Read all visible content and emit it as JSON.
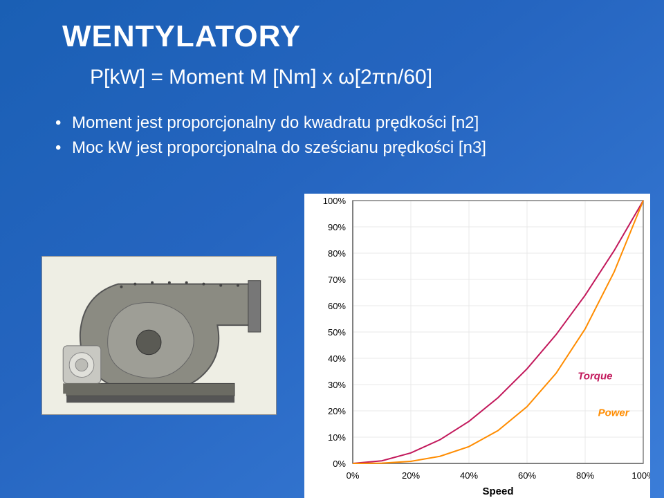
{
  "title": "WENTYLATORY",
  "formula": "P[kW] = Moment M [Nm] x ω[2πn/60]",
  "bullets": [
    "Moment jest proporcjonalny do kwadratu prędkości [n2]",
    "Moc kW jest proporcjonalna do sześcianu prędkości [n3]"
  ],
  "chart": {
    "type": "line",
    "x_axis": {
      "label": "Speed",
      "ticks": [
        "0%",
        "20%",
        "40%",
        "60%",
        "80%",
        "100%"
      ],
      "min": 0,
      "max": 100,
      "step": 20
    },
    "y_axis": {
      "ticks": [
        "0%",
        "10%",
        "20%",
        "30%",
        "40%",
        "50%",
        "60%",
        "70%",
        "80%",
        "90%",
        "100%"
      ],
      "min": 0,
      "max": 100,
      "step": 10
    },
    "grid_color": "#e8e8e8",
    "axis_color": "#808080",
    "background_color": "#ffffff",
    "tick_fontsize": 13,
    "label_fontsize": 15,
    "label_fontweight": "bold",
    "series": [
      {
        "name": "Torque",
        "label": "Torque",
        "color": "#c2185b",
        "label_font": "italic bold 15px Arial",
        "width": 2,
        "label_pos": {
          "x": 76,
          "y": 32
        },
        "points": [
          [
            0,
            0
          ],
          [
            10,
            1
          ],
          [
            20,
            4
          ],
          [
            30,
            9
          ],
          [
            40,
            16
          ],
          [
            50,
            25
          ],
          [
            60,
            36
          ],
          [
            70,
            49
          ],
          [
            80,
            64
          ],
          [
            90,
            81
          ],
          [
            100,
            100
          ]
        ]
      },
      {
        "name": "Power",
        "label": "Power",
        "color": "#ff8c00",
        "label_font": "italic bold 15px Arial",
        "width": 2,
        "label_pos": {
          "x": 83,
          "y": 18
        },
        "points": [
          [
            0,
            0
          ],
          [
            10,
            0.1
          ],
          [
            20,
            0.8
          ],
          [
            30,
            2.7
          ],
          [
            40,
            6.4
          ],
          [
            50,
            12.5
          ],
          [
            60,
            21.6
          ],
          [
            70,
            34.3
          ],
          [
            80,
            51.2
          ],
          [
            90,
            72.9
          ],
          [
            100,
            100
          ]
        ]
      }
    ]
  }
}
